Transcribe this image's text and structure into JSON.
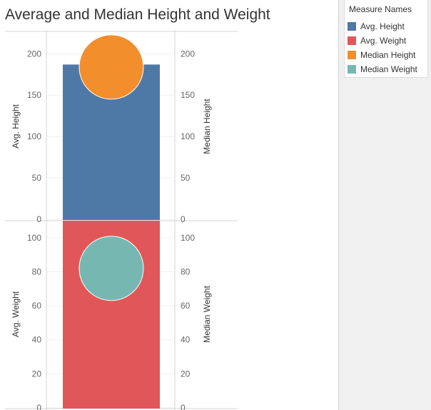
{
  "title": "Average and Median Height and Weight",
  "legend": {
    "title": "Measure Names",
    "items": [
      {
        "label": "Avg. Height",
        "color": "#4e79a7"
      },
      {
        "label": "Avg. Weight",
        "color": "#e15759"
      },
      {
        "label": "Median Height",
        "color": "#f28e2b"
      },
      {
        "label": "Median Weight",
        "color": "#76b7b2"
      }
    ]
  },
  "chart_data": [
    {
      "type": "bar",
      "left_axis": {
        "label": "Avg. Height",
        "ylim": [
          0,
          227
        ],
        "ticks": [
          0,
          50,
          100,
          150,
          200
        ]
      },
      "right_axis": {
        "label": "Median Height",
        "ylim": [
          0,
          227
        ],
        "ticks": [
          0,
          50,
          100,
          150,
          200
        ]
      },
      "series": [
        {
          "name": "Avg. Height",
          "mark": "bar",
          "value": 187,
          "color": "#4e79a7"
        },
        {
          "name": "Median Height",
          "mark": "circle",
          "value": 184,
          "color": "#f28e2b"
        }
      ]
    },
    {
      "type": "bar",
      "left_axis": {
        "label": "Avg. Weight",
        "ylim": [
          0,
          110
        ],
        "ticks": [
          0,
          20,
          40,
          60,
          80,
          100
        ]
      },
      "right_axis": {
        "label": "Median Weight",
        "ylim": [
          0,
          110
        ],
        "ticks": [
          0,
          20,
          40,
          60,
          80,
          100
        ]
      },
      "series": [
        {
          "name": "Avg. Weight",
          "mark": "bar",
          "value": 110,
          "color": "#e15759"
        },
        {
          "name": "Median Weight",
          "mark": "circle",
          "value": 82,
          "color": "#76b7b2"
        }
      ]
    }
  ]
}
